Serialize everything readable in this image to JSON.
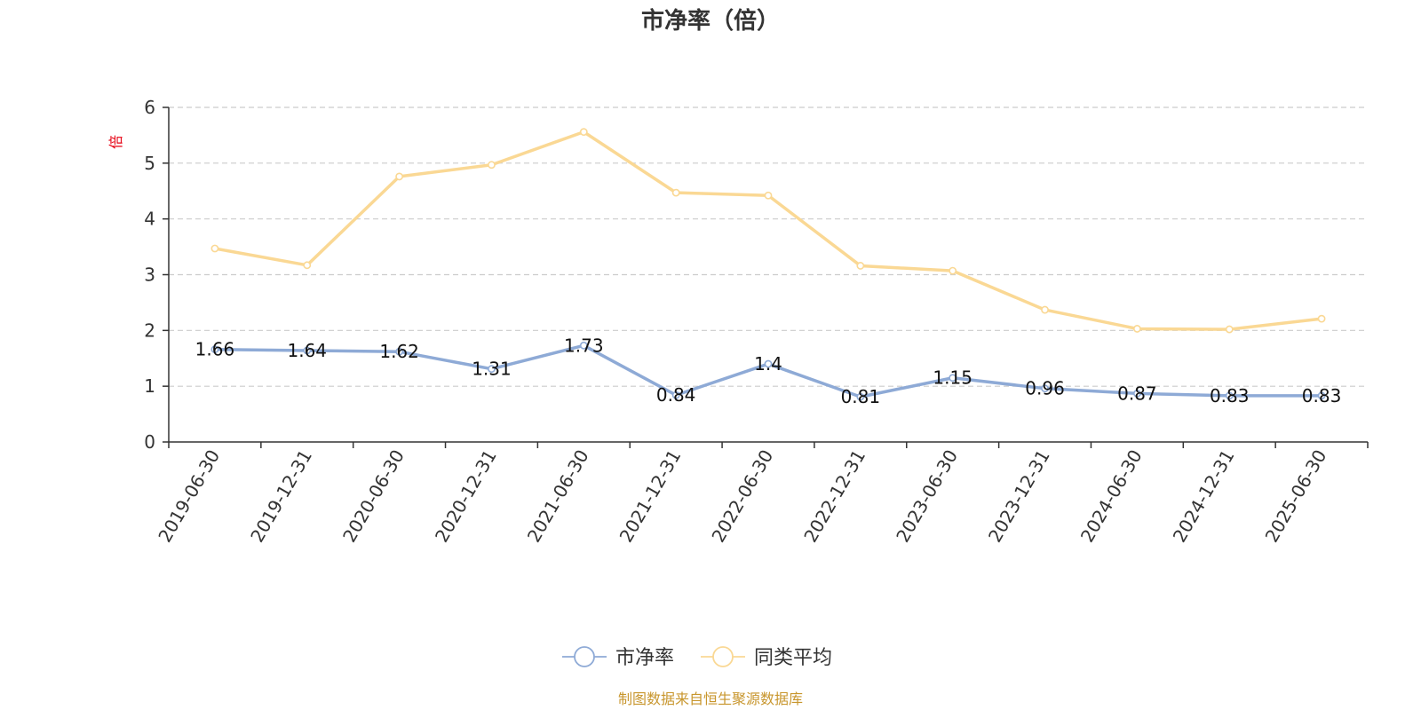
{
  "chart_data": {
    "type": "line",
    "title": "市净率（倍）",
    "ylabel": "倍",
    "xlabel": "",
    "ylim": [
      0,
      6
    ],
    "yticks": [
      0,
      1,
      2,
      3,
      4,
      5,
      6
    ],
    "grid": true,
    "legend_position": "bottom",
    "categories": [
      "2019-06-30",
      "2019-12-31",
      "2020-06-30",
      "2020-12-31",
      "2021-06-30",
      "2021-12-31",
      "2022-06-30",
      "2022-12-31",
      "2023-06-30",
      "2023-12-31",
      "2024-06-30",
      "2024-12-31",
      "2025-06-30"
    ],
    "series": [
      {
        "name": "市净率",
        "color": "#8eaad6",
        "show_labels": true,
        "values": [
          1.66,
          1.64,
          1.62,
          1.31,
          1.73,
          0.84,
          1.4,
          0.81,
          1.15,
          0.96,
          0.87,
          0.83,
          0.83
        ]
      },
      {
        "name": "同类平均",
        "color": "#fad894",
        "show_labels": false,
        "values": [
          3.47,
          3.17,
          4.76,
          4.97,
          5.56,
          4.47,
          4.42,
          3.16,
          3.07,
          2.37,
          2.03,
          2.02,
          2.21
        ]
      }
    ],
    "source": "制图数据来自恒生聚源数据库"
  }
}
